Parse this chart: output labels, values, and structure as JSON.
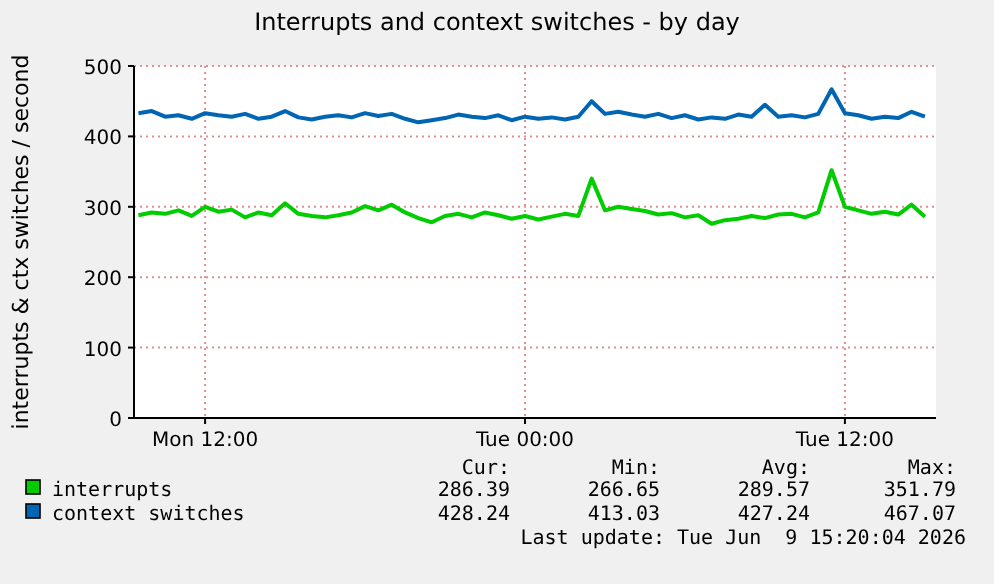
{
  "chart_data": {
    "type": "line",
    "title": "Interrupts and context switches - by day",
    "ylabel": "interrupts & ctx switches / second",
    "x": [
      "2026-06-08T09:30",
      "2026-06-08T10:00",
      "2026-06-08T10:30",
      "2026-06-08T11:00",
      "2026-06-08T11:30",
      "2026-06-08T12:00",
      "2026-06-08T12:30",
      "2026-06-08T13:00",
      "2026-06-08T13:30",
      "2026-06-08T14:00",
      "2026-06-08T14:30",
      "2026-06-08T15:00",
      "2026-06-08T15:30",
      "2026-06-08T16:00",
      "2026-06-08T16:30",
      "2026-06-08T17:00",
      "2026-06-08T17:30",
      "2026-06-08T18:00",
      "2026-06-08T18:30",
      "2026-06-08T19:00",
      "2026-06-08T19:30",
      "2026-06-08T20:00",
      "2026-06-08T20:30",
      "2026-06-08T21:00",
      "2026-06-08T21:30",
      "2026-06-08T22:00",
      "2026-06-08T22:30",
      "2026-06-08T23:00",
      "2026-06-08T23:30",
      "2026-06-09T00:00",
      "2026-06-09T00:30",
      "2026-06-09T01:00",
      "2026-06-09T01:30",
      "2026-06-09T02:00",
      "2026-06-09T02:30",
      "2026-06-09T03:00",
      "2026-06-09T03:30",
      "2026-06-09T04:00",
      "2026-06-09T04:30",
      "2026-06-09T05:00",
      "2026-06-09T05:30",
      "2026-06-09T06:00",
      "2026-06-09T06:30",
      "2026-06-09T07:00",
      "2026-06-09T07:30",
      "2026-06-09T08:00",
      "2026-06-09T08:30",
      "2026-06-09T09:00",
      "2026-06-09T09:30",
      "2026-06-09T10:00",
      "2026-06-09T10:30",
      "2026-06-09T11:00",
      "2026-06-09T11:30",
      "2026-06-09T12:00",
      "2026-06-09T12:30",
      "2026-06-09T13:00",
      "2026-06-09T13:30",
      "2026-06-09T14:00",
      "2026-06-09T14:30",
      "2026-06-09T15:00"
    ],
    "series": [
      {
        "name": "interrupts",
        "color": "#00cc00",
        "values": [
          288,
          292,
          290,
          295,
          287,
          300,
          293,
          296,
          285,
          292,
          288,
          305,
          290,
          287,
          285,
          288,
          292,
          301,
          295,
          303,
          292,
          284,
          278,
          287,
          290,
          285,
          292,
          288,
          283,
          287,
          282,
          286,
          290,
          287,
          340,
          295,
          300,
          297,
          294,
          289,
          291,
          285,
          288,
          276,
          281,
          283,
          287,
          284,
          289,
          290,
          285,
          292,
          352,
          300,
          295,
          290,
          293,
          289,
          303,
          286
        ]
      },
      {
        "name": "context switches",
        "color": "#0066b3",
        "values": [
          433,
          436,
          428,
          430,
          425,
          433,
          430,
          428,
          432,
          425,
          428,
          436,
          427,
          424,
          428,
          430,
          427,
          433,
          429,
          432,
          425,
          420,
          423,
          426,
          431,
          428,
          426,
          430,
          423,
          428,
          425,
          427,
          424,
          428,
          450,
          432,
          435,
          431,
          428,
          432,
          426,
          430,
          424,
          427,
          425,
          431,
          428,
          445,
          428,
          430,
          427,
          432,
          467,
          433,
          430,
          425,
          428,
          426,
          435,
          428
        ]
      }
    ],
    "xlim": [
      "2026-06-08T09:20",
      "2026-06-09T15:25"
    ],
    "xticks": [
      {
        "value": "2026-06-08T12:00",
        "label": "Mon 12:00"
      },
      {
        "value": "2026-06-09T00:00",
        "label": "Tue 00:00"
      },
      {
        "value": "2026-06-09T12:00",
        "label": "Tue 12:00"
      }
    ],
    "ylim": [
      0,
      500
    ],
    "yticks": [
      0,
      100,
      200,
      300,
      400,
      500
    ],
    "grid": true,
    "legend": "bottom",
    "annotations": [
      "Cur:",
      "Min:",
      "Avg:",
      "Max:",
      "286.39",
      "266.65",
      "289.57",
      "351.79",
      "428.24",
      "413.03",
      "427.24",
      "467.07",
      "Last update: Tue Jun  9 15:20:04 2026"
    ]
  }
}
